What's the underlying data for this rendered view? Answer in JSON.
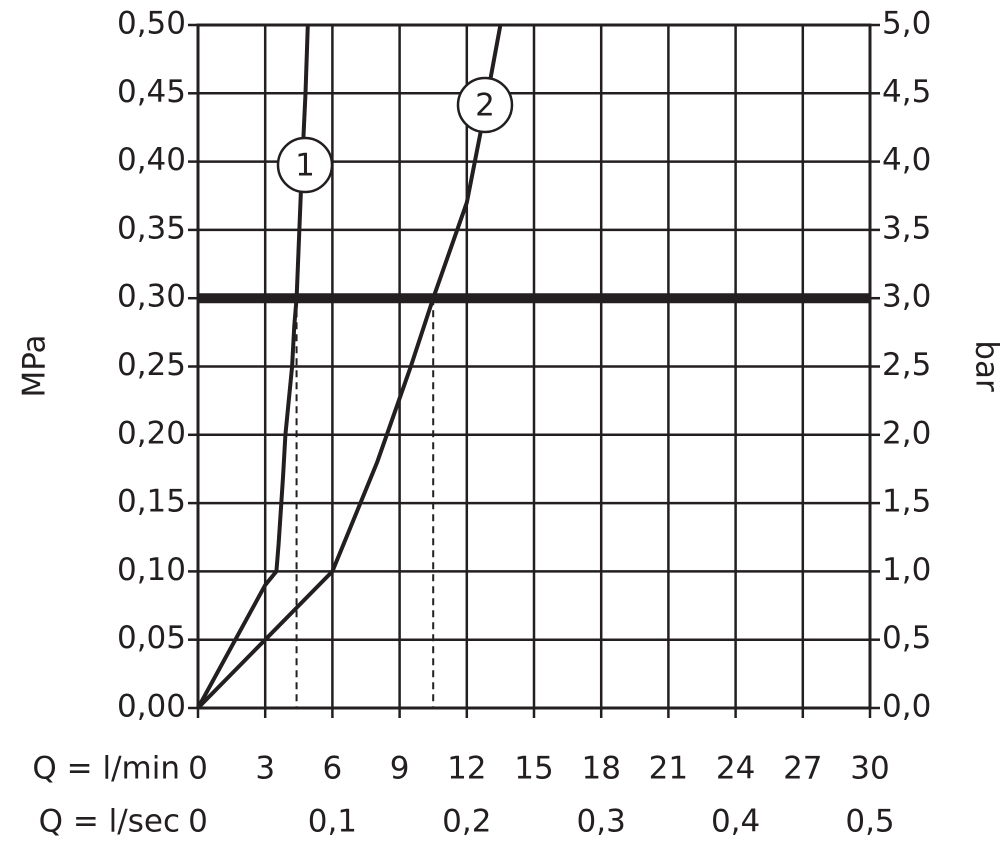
{
  "chart_data": {
    "type": "line",
    "y_label": "MPa",
    "y2_label": "bar",
    "x_label": "Q = l/min",
    "x2_label": "Q = l/sec",
    "xlim": [
      0,
      30
    ],
    "xticks": [
      0,
      3,
      6,
      9,
      12,
      15,
      18,
      21,
      24,
      27,
      30
    ],
    "x2lim": [
      0,
      0.5
    ],
    "x2ticks": [
      0,
      {
        "value": 0.1,
        "label": "0,1"
      },
      {
        "value": 0.2,
        "label": "0,2"
      },
      {
        "value": 0.3,
        "label": "0,3"
      },
      {
        "value": 0.4,
        "label": "0,4"
      },
      {
        "value": 0.5,
        "label": "0,5"
      }
    ],
    "ylim": [
      0,
      0.5
    ],
    "yticks": [
      {
        "value": 0,
        "label": "0,00"
      },
      {
        "value": 0.05,
        "label": "0,05"
      },
      {
        "value": 0.1,
        "label": "0,10"
      },
      {
        "value": 0.15,
        "label": "0,15"
      },
      {
        "value": 0.2,
        "label": "0,20"
      },
      {
        "value": 0.25,
        "label": "0,25"
      },
      {
        "value": 0.3,
        "label": "0,30"
      },
      {
        "value": 0.35,
        "label": "0,35"
      },
      {
        "value": 0.4,
        "label": "0,40"
      },
      {
        "value": 0.45,
        "label": "0,45"
      },
      {
        "value": 0.5,
        "label": "0,50"
      }
    ],
    "y2lim": [
      0,
      5
    ],
    "y2ticks": [
      {
        "value": 0,
        "label": "0,0"
      },
      {
        "value": 0.5,
        "label": "0,5"
      },
      {
        "value": 1,
        "label": "1,0"
      },
      {
        "value": 1.5,
        "label": "1,5"
      },
      {
        "value": 2,
        "label": "2,0"
      },
      {
        "value": 2.5,
        "label": "2,5"
      },
      {
        "value": 3,
        "label": "3,0"
      },
      {
        "value": 3.5,
        "label": "3,5"
      },
      {
        "value": 4,
        "label": "4,0"
      },
      {
        "value": 4.5,
        "label": "4,5"
      },
      {
        "value": 5,
        "label": "5,0"
      }
    ],
    "grid": true,
    "reference_line": 0.3,
    "drop_lines": [
      {
        "x": 4.4,
        "y": 0.3
      },
      {
        "x": 10.5,
        "y": 0.3
      }
    ],
    "series": [
      {
        "name": "1",
        "color": "#231f20",
        "x": [
          0,
          3,
          3.5,
          3.6,
          3.8,
          3.9,
          4.2,
          4.3,
          4.4,
          4.6,
          4.8,
          4.9
        ],
        "values": [
          0,
          0.09,
          0.1,
          0.12,
          0.17,
          0.2,
          0.25,
          0.28,
          0.3,
          0.38,
          0.45,
          0.5
        ]
      },
      {
        "name": "2",
        "color": "#231f20",
        "x": [
          0,
          6,
          6.5,
          8,
          9.5,
          10.5,
          12,
          12.6,
          13.5
        ],
        "values": [
          0,
          0.1,
          0.12,
          0.18,
          0.25,
          0.3,
          0.37,
          0.42,
          0.5
        ]
      }
    ]
  }
}
